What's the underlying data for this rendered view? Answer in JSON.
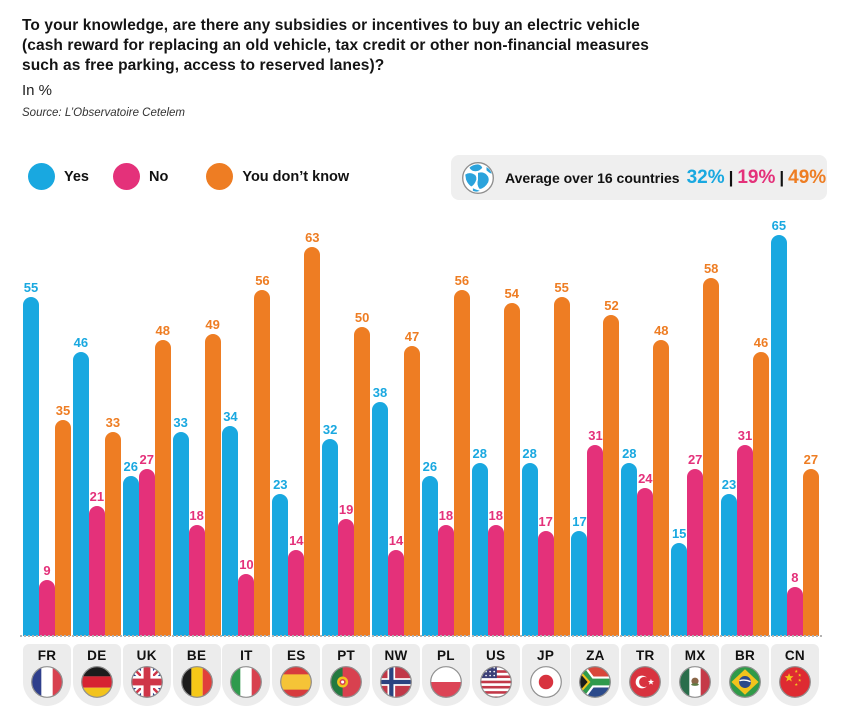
{
  "header": {
    "title_lines": [
      "To your knowledge, are there any subsidies or incentives to buy an electric vehicle",
      "(cash reward for replacing an old vehicle, tax credit or other non-financial measures",
      "such as free parking, access to reserved lanes)?"
    ],
    "unit_label": "In %",
    "source": "Source: L’Observatoire Cetelem"
  },
  "legend": {
    "items": [
      {
        "label": "Yes",
        "color": "#19a8e0"
      },
      {
        "label": "No",
        "color": "#e4317a"
      },
      {
        "label": "You don’t know",
        "color": "#ee7d23"
      }
    ]
  },
  "average": {
    "icon": "globe-icon",
    "label": "Average over 16 countries",
    "separator": "|",
    "values": [
      {
        "text": "32%",
        "color": "#19a8e0"
      },
      {
        "text": "19%",
        "color": "#e4317a"
      },
      {
        "text": "49%",
        "color": "#ee7d23"
      }
    ]
  },
  "chart_data": {
    "type": "bar",
    "title": "To your knowledge, are there any subsidies or incentives to buy an electric vehicle (cash reward for replacing an old vehicle, tax credit or other non-financial measures such as free parking, access to reserved lanes)?",
    "ylabel": "In %",
    "ylim": [
      0,
      70
    ],
    "grid": false,
    "legend_position": "top-left",
    "value_labels": true,
    "categories": [
      "FR",
      "DE",
      "UK",
      "BE",
      "IT",
      "ES",
      "PT",
      "NW",
      "PL",
      "US",
      "JP",
      "ZA",
      "TR",
      "MX",
      "BR",
      "CN"
    ],
    "series": [
      {
        "name": "Yes",
        "color": "#19a8e0",
        "values": [
          55,
          46,
          26,
          33,
          34,
          23,
          32,
          38,
          26,
          28,
          28,
          17,
          28,
          15,
          23,
          65
        ]
      },
      {
        "name": "No",
        "color": "#e4317a",
        "values": [
          9,
          21,
          27,
          18,
          10,
          14,
          19,
          14,
          18,
          18,
          17,
          31,
          24,
          27,
          31,
          8
        ]
      },
      {
        "name": "You don’t know",
        "color": "#ee7d23",
        "values": [
          35,
          33,
          48,
          49,
          56,
          63,
          50,
          47,
          56,
          54,
          55,
          52,
          48,
          58,
          46,
          27
        ]
      }
    ],
    "averages": {
      "Yes": 32,
      "No": 19,
      "You don’t know": 49
    }
  }
}
